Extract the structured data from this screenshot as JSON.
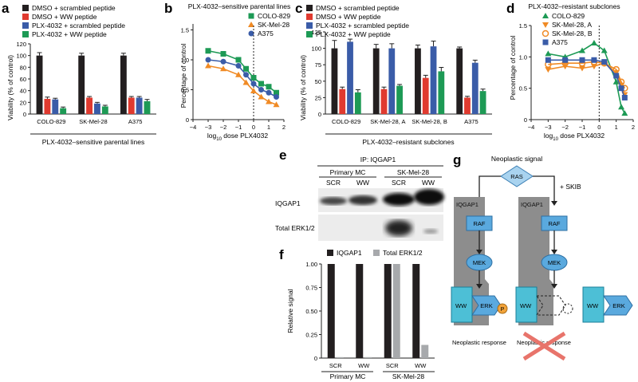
{
  "colors": {
    "black": "#231f20",
    "red": "#e03a2f",
    "blue": "#3a5ca8",
    "green": "#1d9a55",
    "orange": "#f08a24",
    "gray": "#a7a9ac",
    "cyan": "#4dbfd6",
    "cyan_dark": "#1b7f98",
    "cell_gray": "#8d8d8d",
    "node_blue": "#5aa9de",
    "p_orange": "#f2a33a",
    "cross_red": "#e8746b"
  },
  "panel_a": {
    "letter": "a",
    "legend": [
      "DMSO + scrambled peptide",
      "DMSO + WW peptide",
      "PLX-4032 + scrambled peptide",
      "PLX-4032 + WW peptide"
    ],
    "caption": "PLX-4032–sensitive parental lines"
  },
  "panel_b": {
    "letter": "b",
    "title": "PLX-4032–sensitive parental lines",
    "legend": [
      "COLO-829",
      "SK-Mel-28",
      "A375"
    ],
    "log_sub": "10"
  },
  "panel_c": {
    "letter": "c",
    "legend": [
      "DMSO + scrambled peptide",
      "DMSO + WW peptide",
      "PLX-4032 + scrambled peptide",
      "PLX-4032 + WW peptide"
    ],
    "caption": "PLX-4032–resistant subclones"
  },
  "panel_d": {
    "letter": "d",
    "title": "PLX-4032–resistant subclones",
    "legend": [
      "COLO-829",
      "SK-Mel-28, A",
      "SK-Mel-28, B",
      "A375"
    ],
    "log_sub": "10"
  },
  "panel_e": {
    "letter": "e",
    "ip_label": "IP: IQGAP1",
    "groups": [
      "Primary MC",
      "SK-Mel-28"
    ],
    "lanes": [
      "SCR",
      "WW",
      "SCR",
      "WW"
    ],
    "rows": [
      "IQGAP1",
      "Total ERK1/2"
    ]
  },
  "panel_f": {
    "letter": "f",
    "legend": [
      "IQGAP1",
      "Total ERK1/2"
    ],
    "lanes": [
      "SCR",
      "WW",
      "SCR",
      "WW"
    ],
    "groups": [
      "Primary MC",
      "SK-Mel-28"
    ]
  },
  "panel_g": {
    "letter": "g",
    "signal": "Neoplastic signal",
    "ras": "RAS",
    "skib": "+ SKIB",
    "iqgap": "IQGAP1",
    "raf": "RAF",
    "mek": "MEK",
    "erk": "ERK",
    "p": "P",
    "ww": "WW",
    "response": "Neoplastic response"
  },
  "chart_data": [
    {
      "panel": "a",
      "type": "bar",
      "categories": [
        "COLO-829",
        "SK-Mel-28",
        "A375"
      ],
      "ylabel": "Viability (% of control)",
      "ylim": [
        0,
        120
      ],
      "yticks": [
        0,
        20,
        40,
        60,
        80,
        100,
        120
      ],
      "series": [
        {
          "name": "DMSO + scrambled peptide",
          "values": [
            100,
            100,
            100
          ],
          "err": [
            5,
            4,
            4
          ]
        },
        {
          "name": "DMSO + WW peptide",
          "values": [
            26,
            28,
            28
          ],
          "err": [
            3,
            2,
            2
          ]
        },
        {
          "name": "PLX-4032 + scrambled peptide",
          "values": [
            25,
            18,
            28
          ],
          "err": [
            2,
            2,
            2
          ]
        },
        {
          "name": "PLX-4032 + WW peptide",
          "values": [
            10,
            13,
            22
          ],
          "err": [
            2,
            2,
            3
          ]
        }
      ]
    },
    {
      "panel": "b",
      "type": "line",
      "xlabel": "log10 dose PLX4032",
      "ylabel": "Percentage of control",
      "xlim": [
        -4,
        2
      ],
      "ylim": [
        0,
        1.6
      ],
      "xticks": [
        -4,
        -3,
        -2,
        -1,
        0,
        1,
        2
      ],
      "yticks": [
        0,
        0.5,
        1.0,
        1.5
      ],
      "series": [
        {
          "name": "COLO-829",
          "x": [
            -3,
            -2,
            -1,
            -0.5,
            0,
            0.5,
            1,
            1.5
          ],
          "y": [
            1.15,
            1.1,
            1.0,
            0.85,
            0.7,
            0.6,
            0.55,
            0.45
          ]
        },
        {
          "name": "SK-Mel-28",
          "x": [
            -3,
            -2,
            -1,
            -0.5,
            0,
            0.5,
            1,
            1.5
          ],
          "y": [
            0.9,
            0.85,
            0.75,
            0.62,
            0.48,
            0.38,
            0.3,
            0.25
          ]
        },
        {
          "name": "A375",
          "x": [
            -3,
            -2,
            -1,
            -0.5,
            0,
            0.5,
            1,
            1.5
          ],
          "y": [
            1.0,
            0.97,
            0.9,
            0.75,
            0.6,
            0.5,
            0.45,
            0.38
          ]
        }
      ]
    },
    {
      "panel": "c",
      "type": "bar",
      "categories": [
        "COLO-829",
        "SK-Mel-28, A",
        "SK-Mel-28, B",
        "A375"
      ],
      "ylabel": "Viability (% of control)",
      "ylim": [
        0,
        125
      ],
      "yticks": [
        0,
        25,
        50,
        75,
        100,
        125
      ],
      "series": [
        {
          "name": "DMSO + scrambled peptide",
          "values": [
            100,
            100,
            100,
            100
          ],
          "err": [
            12,
            6,
            5,
            2
          ]
        },
        {
          "name": "DMSO + WW peptide",
          "values": [
            38,
            38,
            55,
            25
          ],
          "err": [
            3,
            3,
            4,
            2
          ]
        },
        {
          "name": "PLX-4032 + scrambled peptide",
          "values": [
            110,
            100,
            103,
            78
          ],
          "err": [
            4,
            7,
            8,
            4
          ]
        },
        {
          "name": "PLX-4032 + WW peptide",
          "values": [
            33,
            43,
            65,
            35
          ],
          "err": [
            4,
            2,
            6,
            3
          ]
        }
      ]
    },
    {
      "panel": "d",
      "type": "line",
      "xlabel": "log10 dose PLX4032",
      "ylabel": "Percentage of control",
      "xlim": [
        -4,
        2
      ],
      "ylim": [
        0,
        1.5
      ],
      "xticks": [
        -4,
        -3,
        -2,
        -1,
        0,
        1,
        2
      ],
      "yticks": [
        0,
        0.5,
        1.0,
        1.5
      ],
      "series": [
        {
          "name": "COLO-829",
          "x": [
            -3,
            -2,
            -1,
            -0.3,
            0.3,
            1,
            1.3,
            1.5
          ],
          "y": [
            1.05,
            1.0,
            1.1,
            1.22,
            1.1,
            0.6,
            0.2,
            0.1
          ]
        },
        {
          "name": "SK-Mel-28, A",
          "x": [
            -3,
            -2,
            -1,
            -0.3,
            0.3,
            1,
            1.3,
            1.5
          ],
          "y": [
            0.8,
            0.85,
            0.82,
            0.85,
            0.9,
            0.75,
            0.55,
            0.4
          ]
        },
        {
          "name": "SK-Mel-28, B",
          "x": [
            -3,
            -2,
            -1,
            -0.3,
            0.3,
            1,
            1.3,
            1.5
          ],
          "y": [
            0.88,
            0.9,
            0.9,
            0.92,
            0.9,
            0.8,
            0.6,
            0.5
          ]
        },
        {
          "name": "A375",
          "x": [
            -3,
            -2,
            -1,
            -0.3,
            0.3,
            1,
            1.3,
            1.5
          ],
          "y": [
            0.95,
            0.95,
            0.95,
            0.95,
            0.92,
            0.7,
            0.5,
            0.35
          ]
        }
      ]
    },
    {
      "panel": "f",
      "type": "bar",
      "categories": [
        "SCR",
        "WW",
        "SCR",
        "WW"
      ],
      "ylabel": "Relative signal",
      "ylim": [
        0,
        1.0
      ],
      "yticks": [
        0,
        0.25,
        0.5,
        0.75,
        1.0
      ],
      "series": [
        {
          "name": "IQGAP1",
          "values": [
            1.0,
            1.0,
            1.0,
            1.0
          ]
        },
        {
          "name": "Total ERK1/2",
          "values": [
            0.01,
            0.01,
            1.0,
            0.14
          ]
        }
      ]
    }
  ]
}
